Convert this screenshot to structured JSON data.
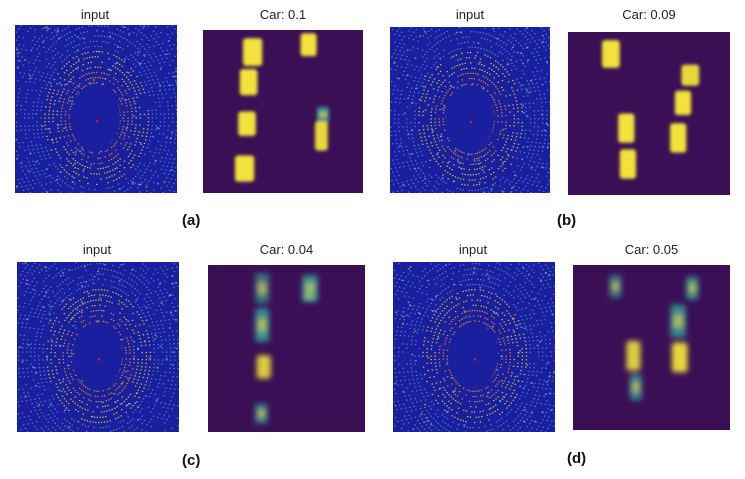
{
  "figure": {
    "panels": [
      {
        "id": "a",
        "label": "(a)",
        "input_title": "input",
        "output_title": "Car: 0.1"
      },
      {
        "id": "b",
        "label": "(b)",
        "input_title": "input",
        "output_title": "Car: 0.09"
      },
      {
        "id": "c",
        "label": "(c)",
        "input_title": "input",
        "output_title": "Car: 0.04"
      },
      {
        "id": "d",
        "label": "(d)",
        "input_title": "input",
        "output_title": "Car: 0.05"
      }
    ],
    "colors": {
      "lidar_background": "#1a1fa0",
      "heatmap_background": "#3b0f55",
      "heatmap_hot": "#f2e23a",
      "heatmap_mid": "#2fa59a",
      "lidar_near": "#e58a1a",
      "lidar_mid": "#d8c82a",
      "lidar_far": "#7ec8e8"
    }
  }
}
